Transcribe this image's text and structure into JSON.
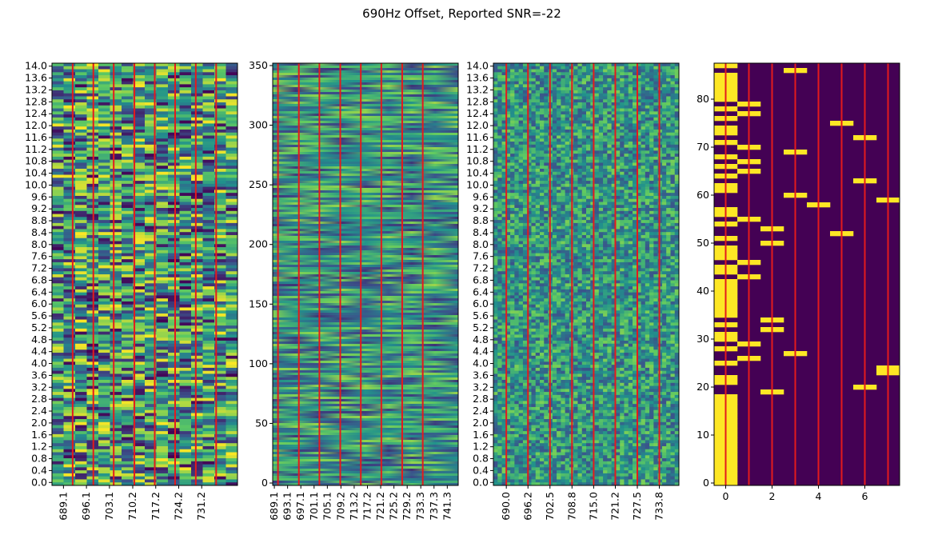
{
  "figure": {
    "title": "690Hz Offset, Reported SNR=-22"
  },
  "colors": {
    "viridis": [
      "#440154",
      "#3b528b",
      "#21918c",
      "#5ec962",
      "#fde725"
    ],
    "marker_line": "#e41a1c",
    "axis": "#000000"
  },
  "chart_data": [
    {
      "type": "heatmap",
      "panel": "spectrogram-fine",
      "title": "",
      "y_ticks": [
        "0.0",
        "0.4",
        "0.8",
        "1.2",
        "1.6",
        "2.0",
        "2.4",
        "2.8",
        "3.2",
        "3.6",
        "4.0",
        "4.4",
        "4.8",
        "5.2",
        "5.6",
        "6.0",
        "6.4",
        "6.8",
        "7.2",
        "7.6",
        "8.0",
        "8.4",
        "8.8",
        "9.2",
        "9.6",
        "10.0",
        "10.4",
        "10.8",
        "11.2",
        "11.6",
        "12.0",
        "12.4",
        "12.8",
        "13.2",
        "13.6",
        "14.0"
      ],
      "x_ticks": [
        "689.1",
        "696.1",
        "703.1",
        "710.2",
        "717.2",
        "724.2",
        "731.2"
      ],
      "xlim": [
        685.6,
        742.1
      ],
      "ylim": [
        -0.1,
        14.1
      ],
      "marker_lines_x": [
        691.9,
        698.2,
        704.4,
        710.7,
        716.9,
        723.1,
        729.4,
        735.6
      ],
      "grid": false
    },
    {
      "type": "heatmap",
      "panel": "spectrogram-time",
      "title": "",
      "y_ticks": [
        "0",
        "50",
        "100",
        "150",
        "200",
        "250",
        "300",
        "350"
      ],
      "x_ticks": [
        "689.1",
        "693.1",
        "697.1",
        "701.1",
        "705.1",
        "709.2",
        "713.2",
        "717.2",
        "721.2",
        "725.2",
        "729.2",
        "733.3",
        "737.3",
        "741.3"
      ],
      "xlim": [
        688.6,
        744.6
      ],
      "ylim": [
        -2,
        352
      ],
      "marker_lines_x": [
        690.2,
        696.5,
        702.7,
        709.0,
        715.2,
        721.4,
        727.7,
        733.9
      ],
      "grid": false
    },
    {
      "type": "heatmap",
      "panel": "spectrogram-coarse",
      "title": "",
      "y_ticks": [
        "0.0",
        "0.4",
        "0.8",
        "1.2",
        "1.6",
        "2.0",
        "2.4",
        "2.8",
        "3.2",
        "3.6",
        "4.0",
        "4.4",
        "4.8",
        "5.2",
        "5.6",
        "6.0",
        "6.4",
        "6.8",
        "7.2",
        "7.6",
        "8.0",
        "8.4",
        "8.8",
        "9.2",
        "9.6",
        "10.0",
        "10.4",
        "10.8",
        "11.2",
        "11.6",
        "12.0",
        "12.4",
        "12.8",
        "13.2",
        "13.6",
        "14.0"
      ],
      "x_ticks": [
        "690.0",
        "696.2",
        "702.5",
        "708.8",
        "715.0",
        "721.2",
        "727.5",
        "733.8"
      ],
      "xlim": [
        686.3,
        739.4
      ],
      "ylim": [
        -0.1,
        14.1
      ],
      "marker_lines_x": [
        690.0,
        696.2,
        702.5,
        708.8,
        715.0,
        721.2,
        727.5,
        733.8
      ],
      "grid": false
    },
    {
      "type": "heatmap",
      "panel": "tone-matrix",
      "title": "",
      "x_ticks": [
        "0",
        "2",
        "4",
        "6"
      ],
      "y_ticks": [
        "0",
        "10",
        "20",
        "30",
        "40",
        "50",
        "60",
        "70",
        "80"
      ],
      "xlim": [
        -0.5,
        7.5
      ],
      "ylim": [
        -0.5,
        87.5
      ],
      "marker_lines_x": [
        0,
        1,
        2,
        3,
        4,
        5,
        6,
        7
      ],
      "tones": [
        0,
        0,
        0,
        0,
        0,
        0,
        0,
        0,
        0,
        0,
        0,
        0,
        0,
        0,
        0,
        0,
        0,
        0,
        0,
        2,
        6,
        0,
        0,
        7,
        7,
        0,
        1,
        3,
        0,
        1,
        0,
        0,
        2,
        0,
        2,
        0,
        0,
        0,
        0,
        0,
        0,
        0,
        0,
        1,
        0,
        0,
        1,
        0,
        0,
        0,
        2,
        0,
        5,
        2,
        0,
        1,
        0,
        0,
        4,
        7,
        3,
        0,
        0,
        6,
        0,
        1,
        0,
        1,
        0,
        3,
        1,
        0,
        6,
        0,
        0,
        5,
        0,
        1,
        0,
        1,
        0,
        0,
        0,
        0,
        0,
        0,
        3,
        0
      ],
      "grid": false
    }
  ]
}
